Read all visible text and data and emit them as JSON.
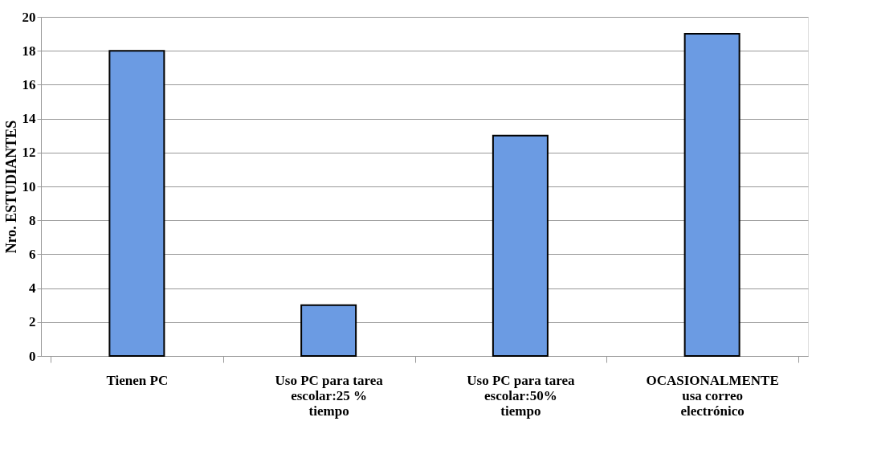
{
  "chart_data": {
    "type": "bar",
    "ylabel": "Nro. ESTUDIANTES",
    "categories": [
      "Tienen PC",
      "Uso PC para tarea\nescolar:25 %\ntiempo",
      "Uso PC para tarea\nescolar:50%\ntiempo",
      "OCASIONALMENTE\nusa correo\nelectrónico"
    ],
    "values": [
      18,
      3,
      13,
      19
    ],
    "color": "#6b9be3",
    "ylim": [
      0,
      20
    ],
    "yticks": [
      0,
      2,
      4,
      6,
      8,
      10,
      12,
      14,
      16,
      18,
      20
    ],
    "grid": "y"
  }
}
